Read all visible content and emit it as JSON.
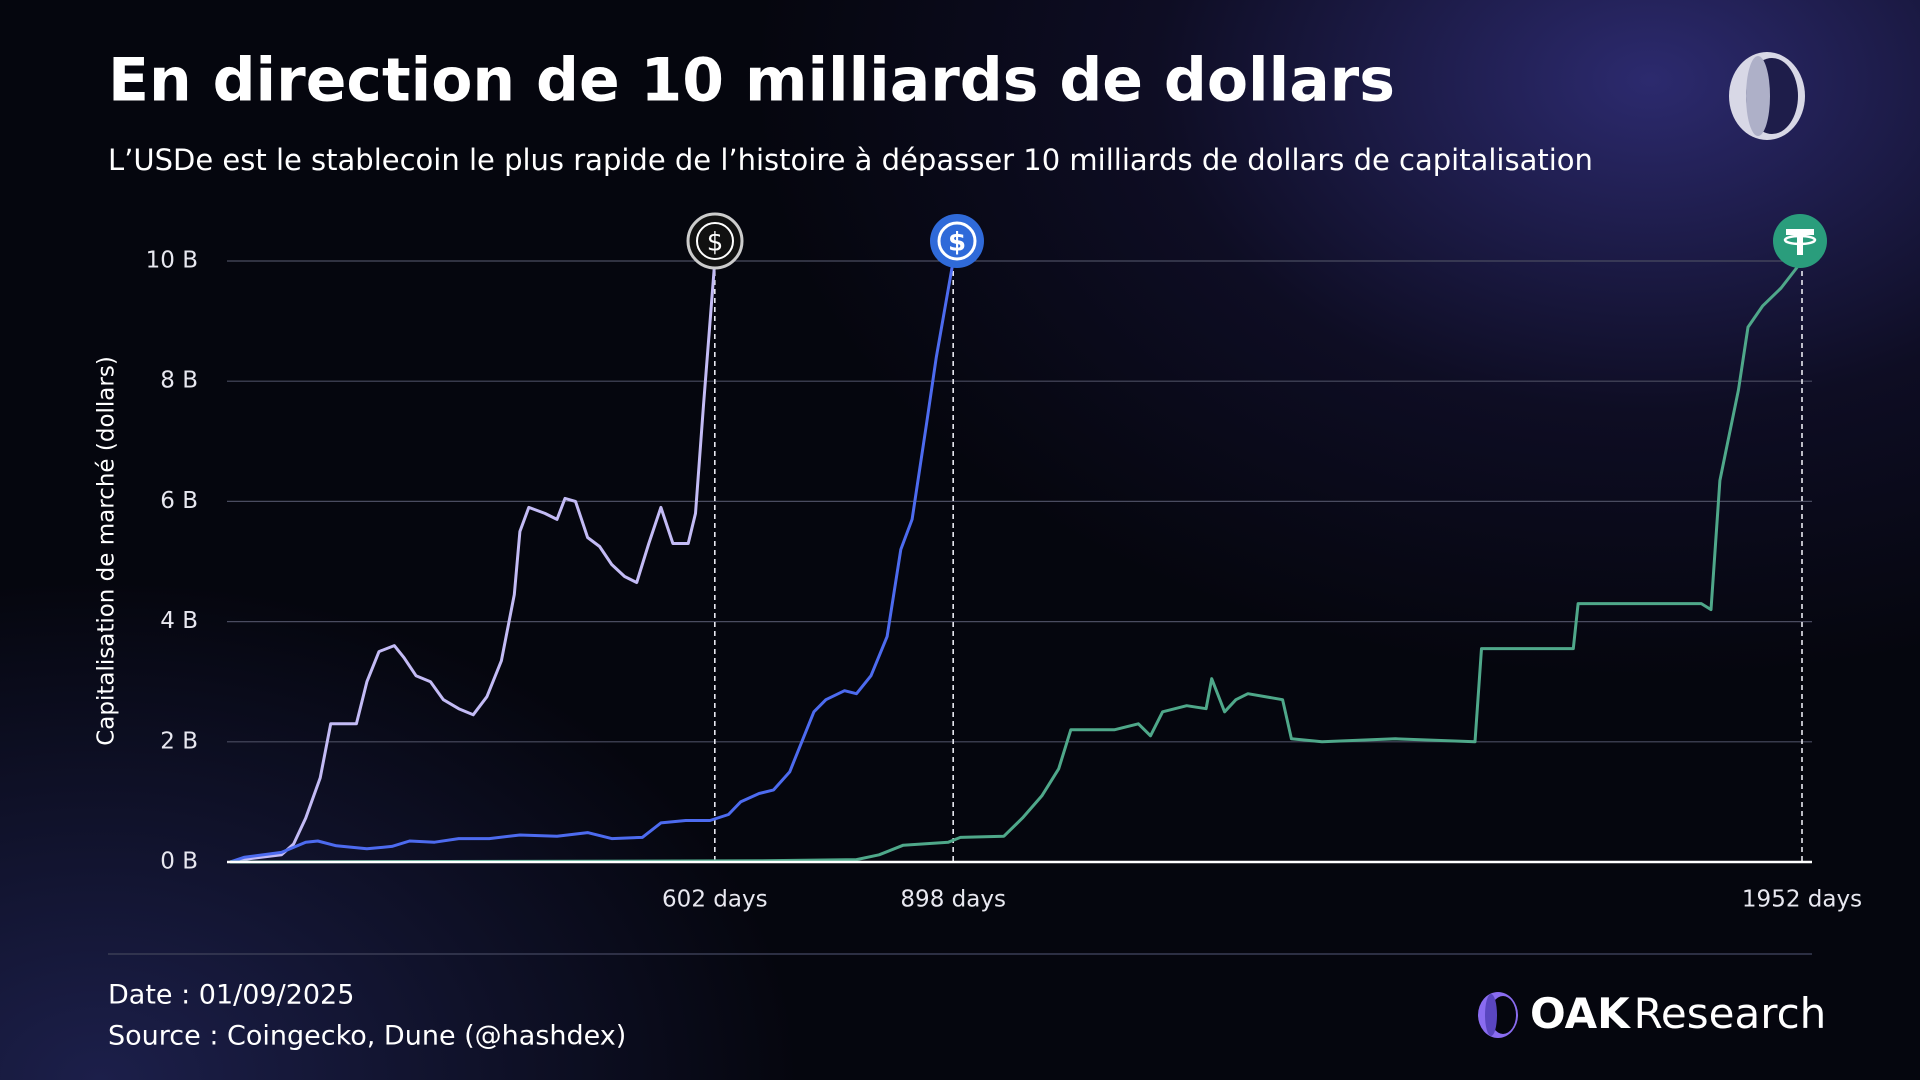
{
  "chart_data": {
    "type": "line",
    "title": "En direction de 10 milliards de dollars",
    "subtitle": "L’USDe est le stablecoin le plus rapide de l’histoire à dépasser 10 milliards de dollars de capitalisation",
    "y_label": "Capitalisation de marché (dollars)",
    "xlim": [
      0,
      1952
    ],
    "xticks": [
      {
        "value": 602,
        "label": "602 days"
      },
      {
        "value": 898,
        "label": "898 days"
      },
      {
        "value": 1952,
        "label": "1952 days"
      }
    ],
    "ylim": [
      0,
      10
    ],
    "yticks": [
      {
        "value": 0,
        "label": "0 B"
      },
      {
        "value": 2,
        "label": "2 B"
      },
      {
        "value": 4,
        "label": "4 B"
      },
      {
        "value": 6,
        "label": "6 B"
      },
      {
        "value": 8,
        "label": "8 B"
      },
      {
        "value": 10,
        "label": "10 B"
      }
    ],
    "grid": true,
    "series": [
      {
        "color": "#c3bbf5",
        "x": [
          0,
          15,
          64,
          79,
          94,
          112,
          125,
          140,
          157,
          170,
          185,
          204,
          216,
          231,
          249,
          265,
          284,
          302,
          319,
          337,
          353,
          360,
          371,
          391,
          406,
          416,
          429,
          444,
          459,
          474,
          490,
          505,
          520,
          535,
          550,
          569,
          578,
          588,
          602
        ],
        "values": [
          0,
          0.04,
          0.12,
          0.3,
          0.73,
          1.4,
          2.3,
          2.3,
          2.3,
          3.0,
          3.5,
          3.6,
          3.4,
          3.1,
          3.0,
          2.7,
          2.55,
          2.45,
          2.75,
          3.35,
          4.45,
          5.5,
          5.9,
          5.8,
          5.7,
          6.05,
          6.0,
          5.4,
          5.25,
          4.95,
          4.75,
          4.65,
          5.3,
          5.9,
          5.3,
          5.3,
          5.8,
          7.6,
          10.0
        ]
      },
      {
        "color": "#4d6bef",
        "x": [
          0,
          18,
          64,
          94,
          109,
          132,
          170,
          201,
          223,
          254,
          284,
          322,
          360,
          406,
          444,
          474,
          512,
          535,
          566,
          596,
          619,
          634,
          657,
          675,
          695,
          710,
          725,
          740,
          763,
          778,
          796,
          816,
          833,
          847,
          865,
          877,
          898
        ],
        "values": [
          0,
          0.08,
          0.16,
          0.33,
          0.35,
          0.27,
          0.22,
          0.26,
          0.35,
          0.33,
          0.39,
          0.39,
          0.45,
          0.43,
          0.49,
          0.39,
          0.41,
          0.65,
          0.69,
          0.69,
          0.79,
          1.0,
          1.14,
          1.2,
          1.5,
          2.0,
          2.5,
          2.7,
          2.85,
          2.8,
          3.1,
          3.75,
          5.2,
          5.7,
          7.3,
          8.4,
          10.0
        ]
      },
      {
        "color": "#4fa88a",
        "x": [
          0,
          657,
          778,
          806,
          836,
          892,
          907,
          961,
          984,
          1008,
          1029,
          1044,
          1098,
          1128,
          1143,
          1158,
          1188,
          1212,
          1219,
          1235,
          1249,
          1264,
          1307,
          1318,
          1356,
          1447,
          1546,
          1554,
          1668,
          1674,
          1827,
          1839,
          1850,
          1860,
          1873,
          1885,
          1903,
          1926,
          1952
        ],
        "values": [
          0,
          0.02,
          0.04,
          0.12,
          0.28,
          0.33,
          0.41,
          0.43,
          0.73,
          1.1,
          1.55,
          2.2,
          2.2,
          2.3,
          2.1,
          2.5,
          2.6,
          2.55,
          3.05,
          2.5,
          2.7,
          2.8,
          2.7,
          2.05,
          2.0,
          2.05,
          2.0,
          3.55,
          3.55,
          4.3,
          4.3,
          4.2,
          6.35,
          7.0,
          7.85,
          8.9,
          9.25,
          9.55,
          10.0
        ]
      }
    ]
  },
  "footer": {
    "date": "Date : 01/09/2025",
    "source": "Source : Coingecko, Dune (@hashdex)"
  },
  "brand": [
    "OAK",
    "Research"
  ]
}
